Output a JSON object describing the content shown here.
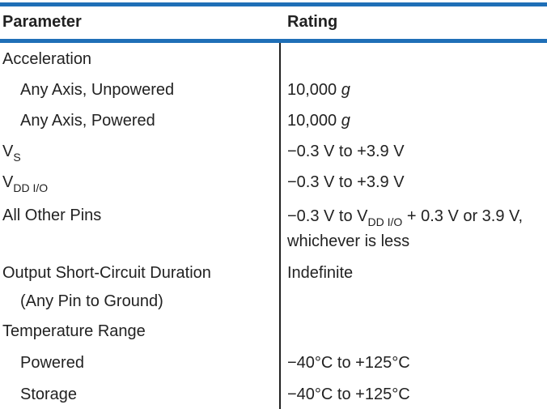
{
  "header": {
    "parameter": "Parameter",
    "rating": "Rating"
  },
  "rows": {
    "acceleration": {
      "param": "Acceleration"
    },
    "unpowered": {
      "param": "Any Axis, Unpowered",
      "value": "10,000",
      "unit": "g"
    },
    "powered_accel": {
      "param": "Any Axis, Powered",
      "value": "10,000",
      "unit": "g"
    },
    "vs": {
      "param_main": "V",
      "param_sub": "S",
      "rating": "−0.3 V to +3.9 V"
    },
    "vdd": {
      "param_main": "V",
      "param_sub": "DD I/O",
      "rating": "−0.3 V to +3.9 V"
    },
    "other_pins": {
      "param": "All Other Pins",
      "rating_prefix": "−0.3 V to V",
      "rating_sub": "DD I/O",
      "rating_suffix": " + 0.3 V or 3.9 V,",
      "rating_line2": "whichever is less"
    },
    "short_circuit": {
      "param_line1": "Output Short-Circuit Duration",
      "param_line2": "(Any Pin to Ground)",
      "rating": "Indefinite"
    },
    "temperature": {
      "param": "Temperature Range"
    },
    "temp_powered": {
      "param": "Powered",
      "rating": "−40°C to +125°C"
    },
    "temp_storage": {
      "param": "Storage",
      "rating": "−40°C to +125°C"
    }
  },
  "colors": {
    "rule": "#1f6fb7",
    "text": "#222222"
  }
}
